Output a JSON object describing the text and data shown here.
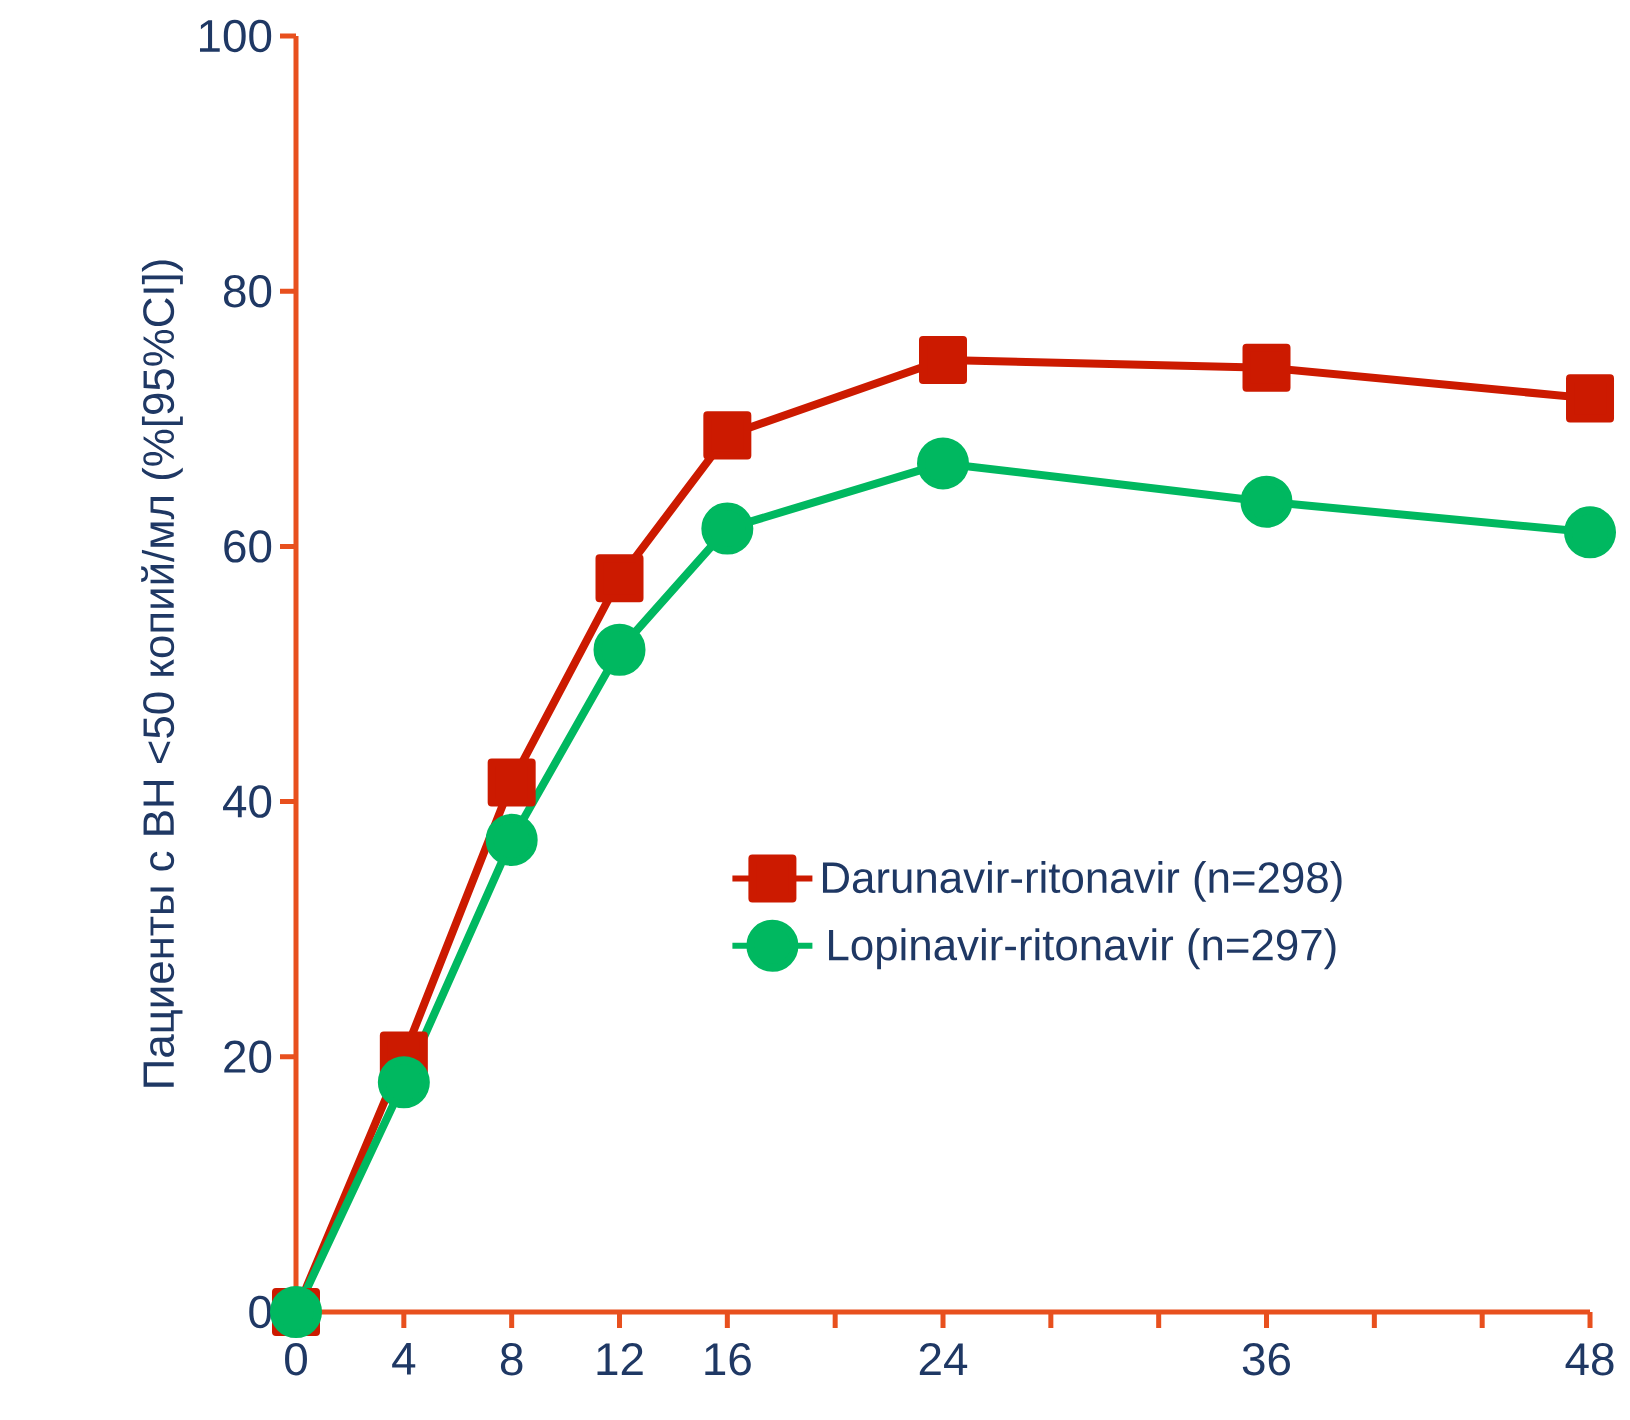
{
  "chart_data": {
    "type": "line",
    "ylabel": "Пациенты с ВН <50 копий/мл (%[95%CI])",
    "x": [
      0,
      4,
      8,
      12,
      16,
      24,
      36,
      48
    ],
    "series": [
      {
        "name": "Darunavir-ritonavir (n=298)",
        "color": "#cc1a00",
        "marker": "square",
        "values": [
          0,
          20.1,
          41.5,
          57.5,
          68.7,
          74.6,
          74,
          71.6
        ]
      },
      {
        "name": "Lopinavir-ritonavir (n=297)",
        "color": "#00b860",
        "marker": "circle",
        "values": [
          0,
          18,
          37,
          51.9,
          61.4,
          66.5,
          63.5,
          61.1
        ]
      }
    ],
    "xlim": [
      0,
      48
    ],
    "xticks": [
      0,
      4,
      8,
      12,
      16,
      {
        "value": 20,
        "label": null
      },
      24,
      {
        "value": 28,
        "label": null
      },
      {
        "value": 32,
        "label": null
      },
      36,
      {
        "value": 40,
        "label": null
      },
      {
        "value": 44,
        "label": null
      },
      48
    ],
    "ylim": [
      0,
      100
    ],
    "yticks": [
      0,
      20,
      40,
      60,
      80,
      100
    ],
    "grid": false,
    "legend": "center right",
    "line_style": "solid"
  }
}
